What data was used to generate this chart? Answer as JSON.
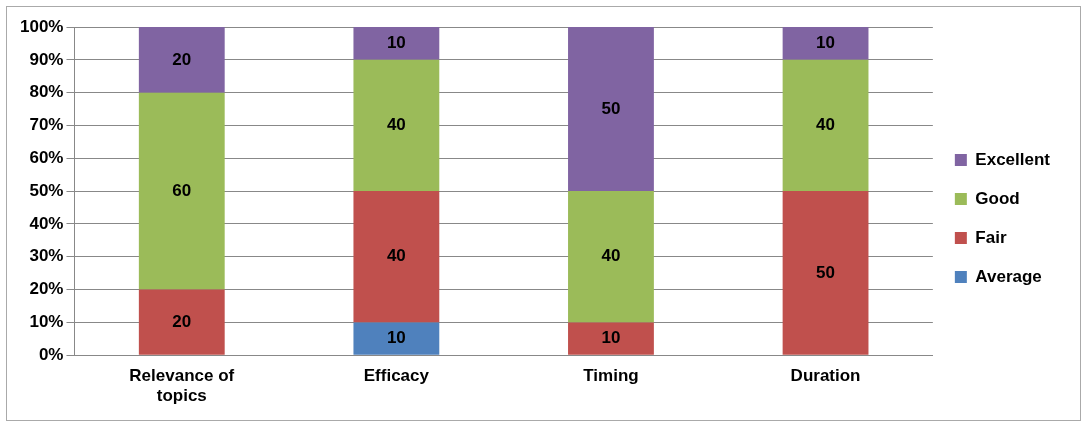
{
  "chart_data": {
    "type": "bar",
    "stacked": true,
    "categories": [
      "Relevance of topics",
      "Efficacy",
      "Timing",
      "Duration"
    ],
    "series": [
      {
        "name": "Average",
        "color": "#4f81bd",
        "values": [
          null,
          10,
          null,
          null
        ]
      },
      {
        "name": "Fair",
        "color": "#c0504d",
        "values": [
          20,
          40,
          10,
          50
        ]
      },
      {
        "name": "Good",
        "color": "#9bbb59",
        "values": [
          60,
          40,
          40,
          40
        ]
      },
      {
        "name": "Excellent",
        "color": "#8064a2",
        "values": [
          20,
          10,
          50,
          10
        ]
      }
    ],
    "ylim": [
      0,
      100
    ],
    "yticks": [
      {
        "value": 0,
        "label": "0%"
      },
      {
        "value": 10,
        "label": "10%"
      },
      {
        "value": 20,
        "label": "20%"
      },
      {
        "value": 30,
        "label": "30%"
      },
      {
        "value": 40,
        "label": "40%"
      },
      {
        "value": 50,
        "label": "50%"
      },
      {
        "value": 60,
        "label": "60%"
      },
      {
        "value": 70,
        "label": "70%"
      },
      {
        "value": 80,
        "label": "80%"
      },
      {
        "value": 90,
        "label": "90%"
      },
      {
        "value": 100,
        "label": "100%"
      }
    ],
    "grid": "y",
    "legend": "right",
    "data_labels": true
  }
}
